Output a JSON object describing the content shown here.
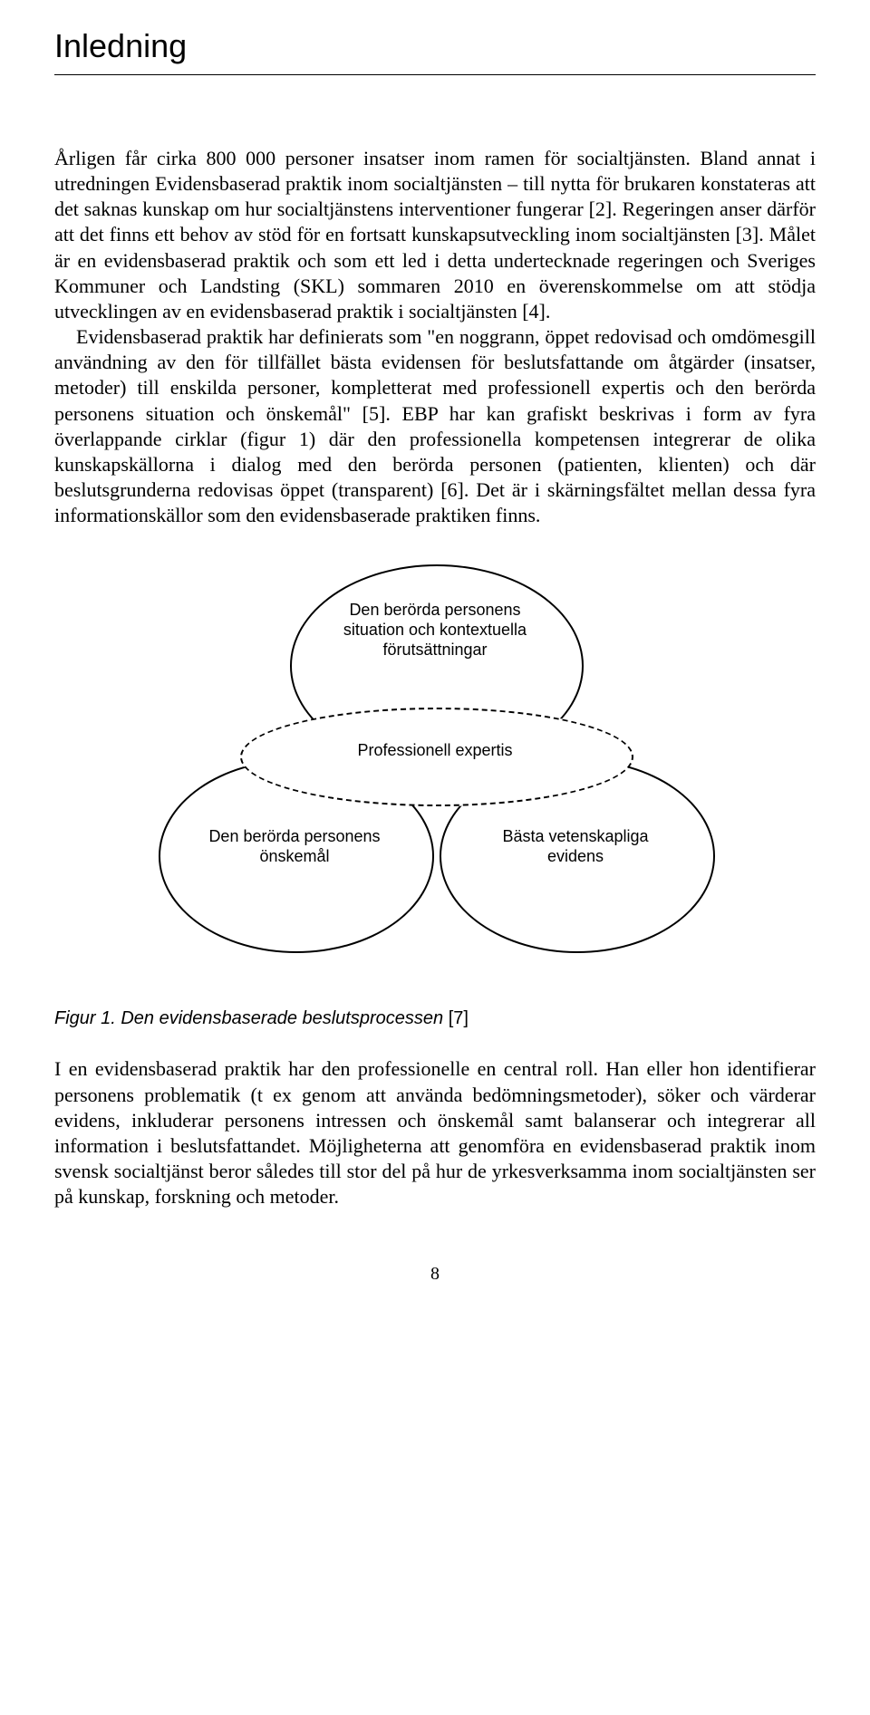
{
  "heading": "Inledning",
  "paragraph1": "Årligen får cirka 800 000 personer insatser inom ramen för socialtjänsten. Bland annat i utredningen Evidensbaserad praktik inom socialtjänsten – till nytta för brukaren konstateras att det saknas kunskap om hur socialtjänstens interventioner fungerar [2]. Regeringen anser därför att det finns ett behov av stöd för en fortsatt kunskapsutveckling inom socialtjänsten [3]. Målet är en evidensbaserad praktik och som ett led i detta undertecknade regeringen och Sveriges Kommuner och Landsting (SKL) sommaren 2010 en överenskommelse om att stödja utvecklingen av en evidensbaserad praktik i socialtjänsten [4].",
  "paragraph2": "Evidensbaserad praktik har definierats som \"en noggrann, öppet redovisad och omdömesgill användning av den för tillfället bästa evidensen för beslutsfattande om åtgärder (insatser, metoder) till enskilda personer, kompletterat med professionell expertis och den berörda personens situation och önskemål\" [5]. EBP har kan grafiskt beskrivas i form av fyra överlappande cirklar (figur 1) där den professionella kompetensen integrerar de olika kunskapskällorna i dialog med den berörda personen (patienten, klienten) och där beslutsgrunderna redovisas öppet (transparent) [6]. Det är i skärningsfältet mellan dessa fyra informationskällor som den evidensbaserade praktiken finns.",
  "diagram": {
    "type": "venn",
    "labels": {
      "top": "Den berörda personens situation och kontextuella förutsättningar",
      "middle": "Professionell expertis",
      "left": "Den berörda personens önskemål",
      "right": "Bästa vetenskapliga evidens"
    },
    "stroke_color": "#000000",
    "background_color": "#ffffff",
    "dash_pattern": "6,6",
    "line_width": 2,
    "font_family": "Arial",
    "font_size_pt": 14
  },
  "figure_caption_prefix": "Figur 1. Den evidensbaserade beslutsprocessen ",
  "figure_caption_ref": "[7]",
  "paragraph3": "I en evidensbaserad praktik har den professionelle en central roll. Han eller hon identifierar personens problematik (t ex genom att använda bedömningsmetoder), söker och värderar evidens, inkluderar personens intressen och önskemål samt balanserar och integrerar all information i beslutsfattandet. Möjligheterna att genomföra en evidensbaserad praktik inom svensk socialtjänst beror således till stor del på hur de yrkesverksamma inom socialtjänsten ser på kunskap, forskning och metoder.",
  "page_number": "8",
  "colors": {
    "text": "#000000",
    "background": "#ffffff",
    "rule": "#000000"
  },
  "typography": {
    "heading_font": "Arial",
    "heading_size_pt": 27,
    "body_font": "Georgia",
    "body_size_pt": 16,
    "caption_font": "Arial",
    "caption_size_pt": 15,
    "caption_style": "italic"
  }
}
